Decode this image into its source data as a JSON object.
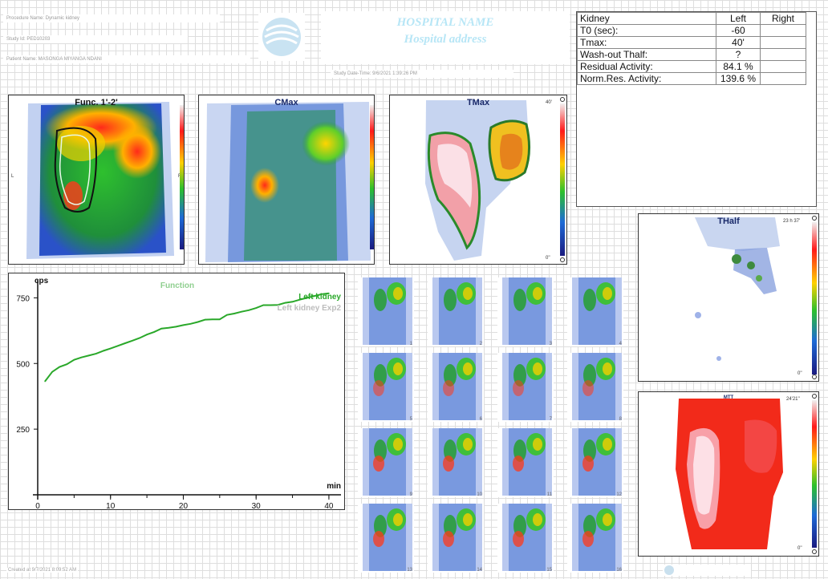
{
  "header": {
    "procedure_name": "Procedure Name: Dynamic kidney",
    "study_id": "Study Id: PED10203",
    "patient_name": "Patient Name: MASONGA MIYANGA NDANI",
    "study_date_time": "Study Date-Time: 9/6/2021 1:39:26 PM",
    "hospital_name": "HOSPITAL NAME",
    "hospital_address": "Hospital address"
  },
  "results": {
    "columns": [
      "Kidney",
      "Left",
      "Right"
    ],
    "rows": [
      {
        "label": "T0 (sec):",
        "left": " -60",
        "right": ""
      },
      {
        "label": "Tmax:",
        "left": "40'",
        "right": ""
      },
      {
        "label": "Wash-out Thalf:",
        "left": "?",
        "right": ""
      },
      {
        "label": "Residual Activity:",
        "left": " 84.1 %",
        "right": ""
      },
      {
        "label": "Norm.Res. Activity:",
        "left": "139.6 %",
        "right": ""
      }
    ]
  },
  "panels": {
    "func": {
      "title": "Func. 1'-2'",
      "left_marker": "L",
      "right_marker": "R"
    },
    "cmax": {
      "title": "CMax"
    },
    "tmax": {
      "title": "TMax",
      "scale_top": "40'",
      "scale_bottom": "0''"
    },
    "thalf": {
      "title": "THalf",
      "scale_top": "23 h 37'",
      "scale_bottom": "0''"
    },
    "mtt": {
      "title": "MTT",
      "scale_top": "24'21''",
      "scale_bottom": "0''"
    }
  },
  "colors": {
    "curve": "#2aa82a",
    "title_text": "#1a2a6a",
    "legend_exp2": "#bdbdbd",
    "function_label": "#8fcf8f"
  },
  "chart_data": {
    "type": "line",
    "title": "Function",
    "xlabel": "min",
    "ylabel": "cps",
    "xlim": [
      0,
      41
    ],
    "ylim": [
      0,
      800
    ],
    "x_ticks": [
      0,
      10,
      20,
      30,
      40
    ],
    "y_ticks": [
      250,
      500,
      750
    ],
    "grid": false,
    "legend_position": "top-right",
    "series": [
      {
        "name": "Left kidney",
        "color": "#2aa82a",
        "x": [
          1,
          2,
          3,
          4,
          5,
          6,
          7,
          8,
          9,
          10,
          11,
          12,
          13,
          14,
          15,
          16,
          17,
          18,
          19,
          20,
          21,
          22,
          23,
          24,
          25,
          26,
          27,
          28,
          29,
          30,
          31,
          32,
          33,
          34,
          35,
          36,
          37,
          38,
          39,
          40
        ],
        "values": [
          432,
          468,
          487,
          497,
          514,
          523,
          530,
          537,
          548,
          557,
          567,
          577,
          587,
          597,
          610,
          620,
          633,
          636,
          640,
          646,
          651,
          658,
          667,
          668,
          668,
          685,
          690,
          697,
          703,
          711,
          722,
          722,
          723,
          731,
          735,
          743,
          750,
          757,
          764,
          767
        ]
      },
      {
        "name": "Left kidney Exp2",
        "color": "#bdbdbd",
        "x": [],
        "values": []
      }
    ]
  },
  "frames": [
    "1",
    "2",
    "3",
    "4",
    "5",
    "6",
    "7",
    "8",
    "9",
    "10",
    "11",
    "12",
    "13",
    "14",
    "15",
    "16"
  ],
  "footer": {
    "created": "Created at 9/7/2021 8:09:52 AM"
  }
}
